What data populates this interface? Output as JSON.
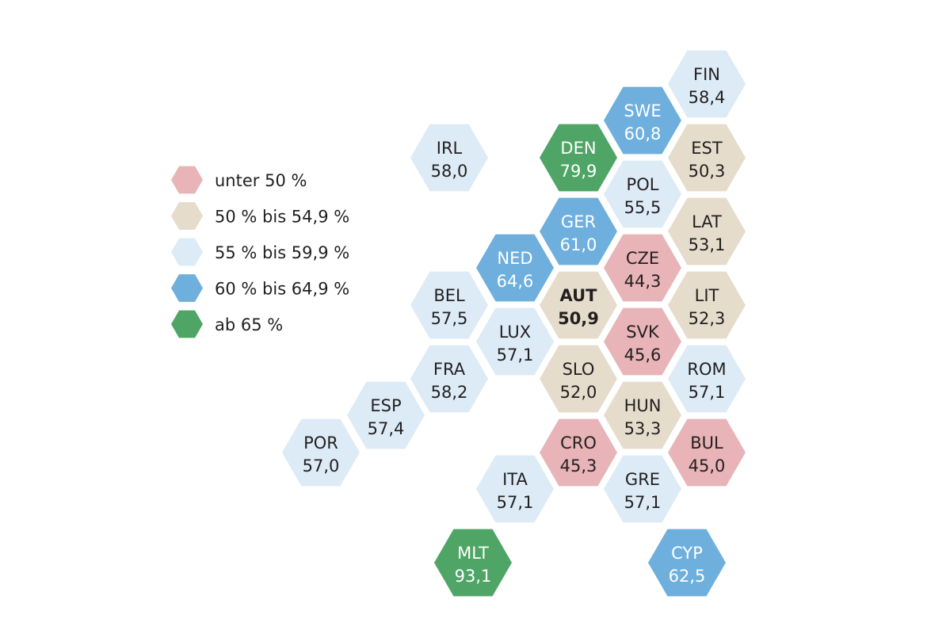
{
  "legend": [
    {
      "label": "unter 50 %",
      "color": "#e8b4b8"
    },
    {
      "label": "50 % bis 54,9 %",
      "color": "#e6dccb"
    },
    {
      "label": "55 % bis 59,9 %",
      "color": "#dcebf6"
    },
    {
      "label": "60 % bis 64,9 %",
      "color": "#6eafdd"
    },
    {
      "label": "ab 65 %",
      "color": "#4fa565"
    }
  ],
  "text_colors": {
    "dark": "#231f20",
    "light": "#ffffff"
  },
  "countries": [
    {
      "code": "FIN",
      "value": "58,4",
      "category": 2
    },
    {
      "code": "SWE",
      "value": "60,8",
      "category": 3
    },
    {
      "code": "EST",
      "value": "50,3",
      "category": 1
    },
    {
      "code": "IRL",
      "value": "58,0",
      "category": 2
    },
    {
      "code": "DEN",
      "value": "79,9",
      "category": 4
    },
    {
      "code": "POL",
      "value": "55,5",
      "category": 2
    },
    {
      "code": "LAT",
      "value": "53,1",
      "category": 1
    },
    {
      "code": "GER",
      "value": "61,0",
      "category": 3
    },
    {
      "code": "NED",
      "value": "64,6",
      "category": 3
    },
    {
      "code": "CZE",
      "value": "44,3",
      "category": 0
    },
    {
      "code": "BEL",
      "value": "57,5",
      "category": 2
    },
    {
      "code": "AUT",
      "value": "50,9",
      "category": 1,
      "bold": true
    },
    {
      "code": "LIT",
      "value": "52,3",
      "category": 1
    },
    {
      "code": "LUX",
      "value": "57,1",
      "category": 2
    },
    {
      "code": "SVK",
      "value": "45,6",
      "category": 0
    },
    {
      "code": "FRA",
      "value": "58,2",
      "category": 2
    },
    {
      "code": "SLO",
      "value": "52,0",
      "category": 1
    },
    {
      "code": "ROM",
      "value": "57,1",
      "category": 2
    },
    {
      "code": "ESP",
      "value": "57,4",
      "category": 2
    },
    {
      "code": "HUN",
      "value": "53,3",
      "category": 1
    },
    {
      "code": "POR",
      "value": "57,0",
      "category": 2
    },
    {
      "code": "CRO",
      "value": "45,3",
      "category": 0
    },
    {
      "code": "BUL",
      "value": "45,0",
      "category": 0
    },
    {
      "code": "ITA",
      "value": "57,1",
      "category": 2
    },
    {
      "code": "GRE",
      "value": "57,1",
      "category": 2
    },
    {
      "code": "MLT",
      "value": "93,1",
      "category": 4
    },
    {
      "code": "CYP",
      "value": "62,5",
      "category": 3
    }
  ]
}
